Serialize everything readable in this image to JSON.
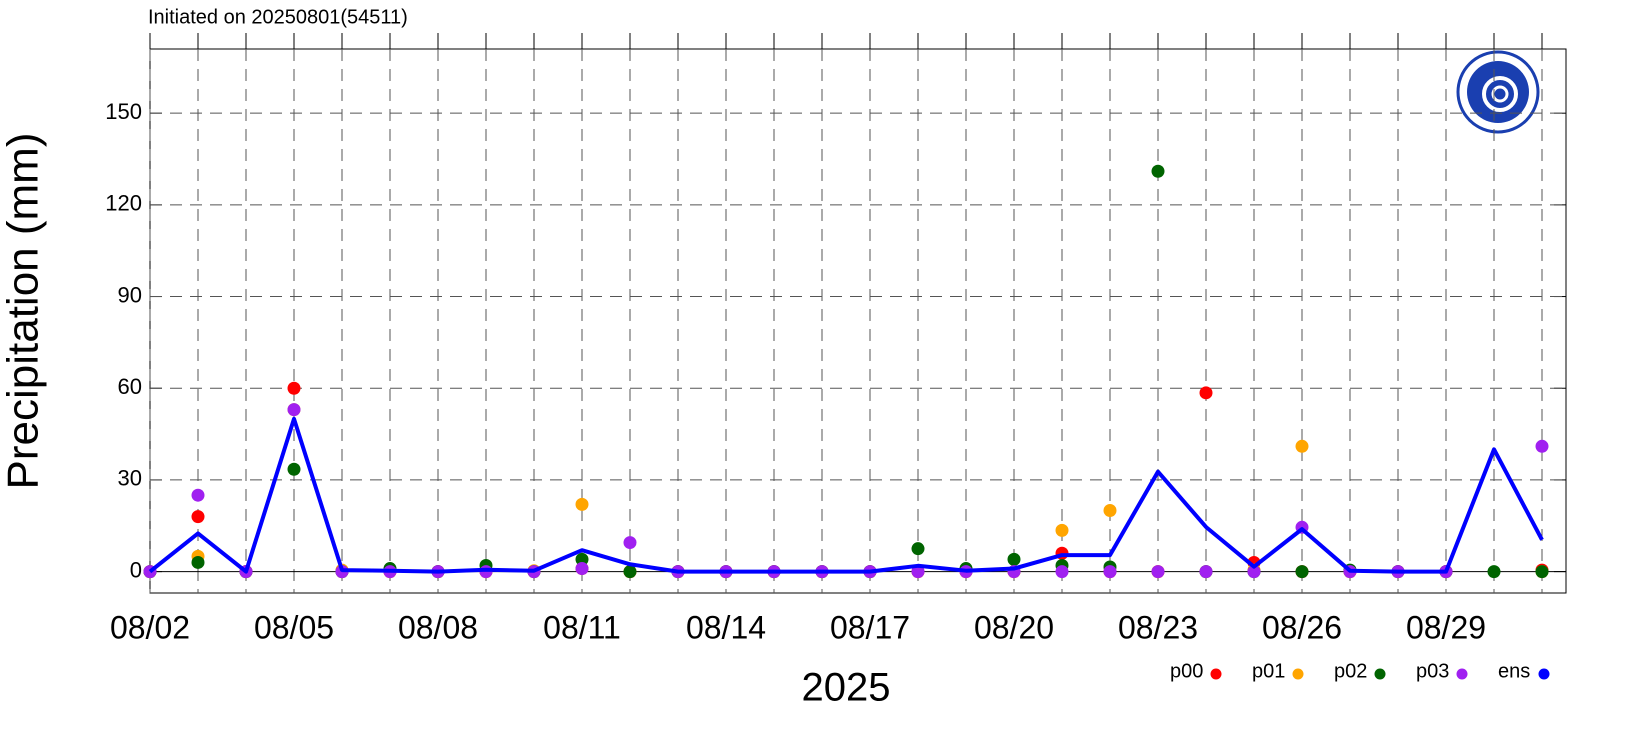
{
  "chart_data": {
    "type": "line",
    "title": "Initiated on 20250801(54511)",
    "x_label": "2025",
    "y_label": "Precipitation (mm)",
    "categories": [
      "08/02",
      null,
      null,
      "08/05",
      null,
      null,
      "08/08",
      null,
      null,
      "08/11",
      null,
      null,
      "08/14",
      null,
      null,
      "08/17",
      null,
      null,
      "08/20",
      null,
      null,
      "08/23",
      null,
      null,
      "08/26",
      null,
      null,
      "08/29",
      null,
      null
    ],
    "ylim": [
      -7,
      171
    ],
    "yticks": [
      0,
      30,
      60,
      90,
      120,
      150
    ],
    "grid": true,
    "legend": "bottom-right",
    "series": [
      {
        "name": "p00",
        "type": "scatter",
        "color": "#ff0000",
        "values": [
          0,
          18,
          0,
          60,
          0,
          0,
          0,
          0,
          0,
          1,
          0,
          0,
          0,
          0,
          0,
          0,
          0,
          0,
          0,
          6,
          0,
          0,
          58.5,
          3,
          0,
          0,
          0,
          0,
          null,
          0.5
        ]
      },
      {
        "name": "p01",
        "type": "scatter",
        "color": "#ffa500",
        "values": [
          0,
          5,
          0,
          53,
          0.5,
          0,
          0,
          0,
          0.3,
          22,
          0,
          0,
          0,
          0,
          0,
          0,
          0,
          0,
          0,
          13.5,
          20,
          0,
          0,
          0.5,
          41,
          0,
          0,
          0,
          null,
          0
        ]
      },
      {
        "name": "p02",
        "type": "scatter",
        "color": "#006400",
        "values": [
          0,
          3,
          0,
          33.5,
          0,
          1,
          0,
          2,
          0,
          4,
          0,
          0,
          0,
          0,
          0,
          0,
          7.5,
          1,
          4,
          2,
          1.5,
          131,
          0,
          0,
          0,
          0.5,
          0,
          0,
          0,
          0
        ]
      },
      {
        "name": "p03",
        "type": "scatter",
        "color": "#a020f0",
        "values": [
          0,
          25,
          0,
          53,
          0,
          0,
          0,
          0,
          0,
          1,
          9.5,
          0,
          0,
          0,
          0,
          0,
          0,
          0,
          0,
          0,
          0,
          0,
          0,
          0,
          14.5,
          0,
          0,
          0,
          null,
          41
        ]
      },
      {
        "name": "ens",
        "type": "line",
        "color": "#0000ff",
        "values": [
          0,
          12.5,
          0,
          50,
          0.5,
          0.3,
          0,
          0.6,
          0.3,
          7,
          2.4,
          0,
          0,
          0,
          0,
          0,
          1.9,
          0.3,
          1,
          5.4,
          5.4,
          32.7,
          14.6,
          1.6,
          13.9,
          0.3,
          0,
          0,
          40,
          10.4
        ]
      }
    ]
  }
}
